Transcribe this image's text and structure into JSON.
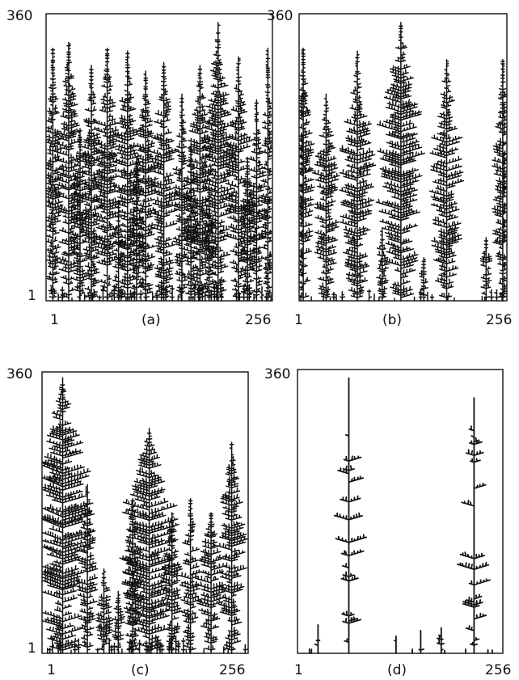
{
  "panels": [
    {
      "label": "(a)",
      "y_top": "360",
      "y_bottom": "1",
      "x_left": "1",
      "x_right": "256"
    },
    {
      "label": "(b)",
      "y_top": "360",
      "y_bottom": "1",
      "x_left": "1",
      "x_right": "256"
    },
    {
      "label": "(c)",
      "y_top": "360",
      "y_bottom": "1",
      "x_left": "1",
      "x_right": "256"
    },
    {
      "label": "(d)",
      "y_top": "360",
      "y_bottom": "1",
      "x_left": "1",
      "x_right": "256"
    }
  ]
}
